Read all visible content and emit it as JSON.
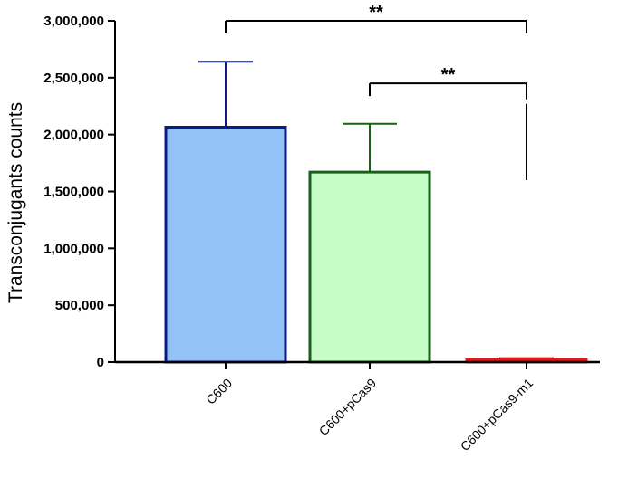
{
  "chart_data": {
    "type": "bar",
    "title": "",
    "xlabel": "",
    "ylabel": "Transconjugants counts",
    "ylim": [
      0,
      3000000
    ],
    "yticks": [
      0,
      500000,
      1000000,
      1500000,
      2000000,
      2500000,
      3000000
    ],
    "ytick_labels": [
      "0",
      "500,000",
      "1,000,000",
      "1,500,000",
      "2,000,000",
      "2,500,000",
      "3,000,000"
    ],
    "categories": [
      "C600",
      "C600+pCas9",
      "C600+pCas9-m1"
    ],
    "values": [
      2065000,
      1670000,
      20000
    ],
    "error_upper": [
      2640000,
      2095000,
      35000
    ],
    "fill_colors": [
      "#93c3f6",
      "#c6fcc6",
      "#ffffff"
    ],
    "edge_colors": [
      "#0c1a85",
      "#176217",
      "#e01818"
    ],
    "grid": false,
    "legend": "none",
    "significance": [
      {
        "from": 0,
        "to": 2,
        "label": "**",
        "level": 3000000,
        "drop_right": 2890000
      },
      {
        "from": 1,
        "to": 2,
        "label": "**",
        "level": 2450000,
        "drop_right": 1600000,
        "gap": [
          2310000,
          2270000
        ]
      }
    ]
  }
}
